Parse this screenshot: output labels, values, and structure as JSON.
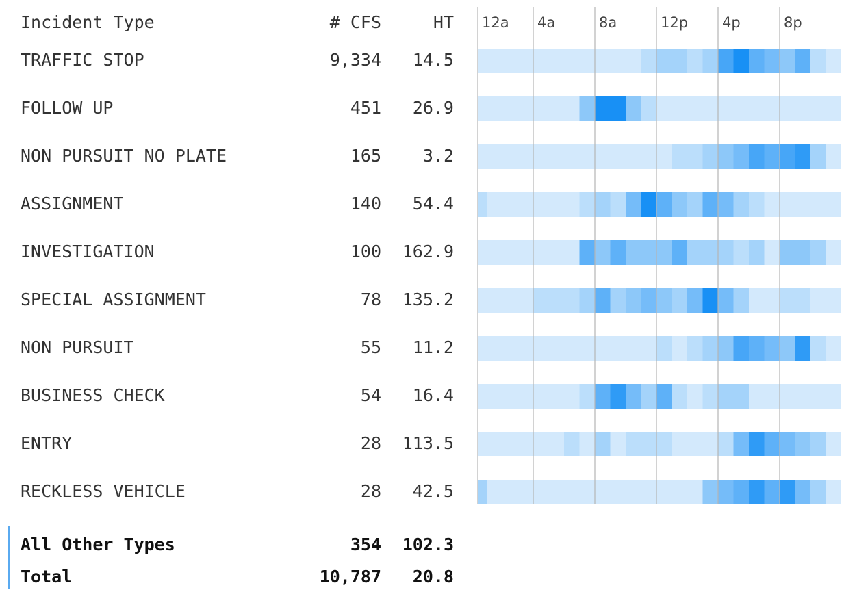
{
  "header": {
    "type": "Incident Type",
    "cfs": "# CFS",
    "ht": "HT"
  },
  "hour_labels": [
    "12a",
    "4a",
    "8a",
    "12p",
    "4p",
    "8p"
  ],
  "rows": [
    {
      "type": "TRAFFIC STOP",
      "cfs": "9,334",
      "ht": "14.5",
      "hours": [
        1,
        1,
        1,
        1,
        1,
        1,
        1,
        1,
        1,
        1,
        1,
        2,
        3,
        3,
        2,
        3,
        7,
        9,
        6,
        5,
        4,
        6,
        2,
        1
      ]
    },
    {
      "type": "FOLLOW UP",
      "cfs": "451",
      "ht": "26.9",
      "hours": [
        1,
        1,
        1,
        1,
        1,
        1,
        1,
        4,
        9,
        9,
        4,
        2,
        1,
        1,
        1,
        1,
        1,
        1,
        1,
        1,
        1,
        1,
        1,
        1
      ]
    },
    {
      "type": "NON PURSUIT NO PLATE",
      "cfs": "165",
      "ht": "3.2",
      "hours": [
        1,
        1,
        1,
        1,
        1,
        1,
        1,
        1,
        1,
        1,
        1,
        1,
        1,
        2,
        2,
        3,
        4,
        5,
        7,
        6,
        7,
        8,
        3,
        1
      ]
    },
    {
      "type": "ASSIGNMENT",
      "cfs": "140",
      "ht": "54.4",
      "hours": [
        2,
        1,
        1,
        1,
        1,
        1,
        1,
        2,
        3,
        2,
        5,
        9,
        6,
        4,
        3,
        6,
        5,
        3,
        2,
        1,
        1,
        1,
        1,
        1
      ]
    },
    {
      "type": "INVESTIGATION",
      "cfs": "100",
      "ht": "162.9",
      "hours": [
        1,
        1,
        1,
        1,
        1,
        1,
        1,
        6,
        4,
        6,
        4,
        4,
        4,
        6,
        3,
        3,
        3,
        2,
        3,
        1,
        4,
        4,
        3,
        1
      ]
    },
    {
      "type": "SPECIAL ASSIGNMENT",
      "cfs": "78",
      "ht": "135.2",
      "hours": [
        1,
        1,
        1,
        1,
        2,
        2,
        2,
        3,
        6,
        3,
        4,
        5,
        4,
        3,
        5,
        9,
        5,
        3,
        1,
        1,
        2,
        2,
        1,
        1
      ]
    },
    {
      "type": "NON PURSUIT",
      "cfs": "55",
      "ht": "11.2",
      "hours": [
        1,
        1,
        1,
        1,
        1,
        1,
        1,
        1,
        1,
        1,
        1,
        1,
        2,
        1,
        2,
        3,
        4,
        7,
        6,
        5,
        4,
        8,
        2,
        1
      ]
    },
    {
      "type": "BUSINESS CHECK",
      "cfs": "54",
      "ht": "16.4",
      "hours": [
        1,
        1,
        1,
        1,
        1,
        1,
        1,
        2,
        6,
        8,
        5,
        3,
        6,
        2,
        1,
        2,
        3,
        3,
        1,
        1,
        1,
        1,
        1,
        1
      ]
    },
    {
      "type": "ENTRY",
      "cfs": "28",
      "ht": "113.5",
      "hours": [
        1,
        1,
        1,
        1,
        1,
        1,
        2,
        1,
        3,
        1,
        2,
        2,
        2,
        1,
        1,
        1,
        2,
        5,
        8,
        6,
        5,
        4,
        3,
        1
      ]
    },
    {
      "type": "RECKLESS VEHICLE",
      "cfs": "28",
      "ht": "42.5",
      "hours": [
        3,
        1,
        1,
        1,
        1,
        1,
        1,
        1,
        1,
        1,
        1,
        1,
        1,
        1,
        1,
        4,
        5,
        6,
        8,
        6,
        8,
        5,
        3,
        1
      ]
    }
  ],
  "other": {
    "type": "All Other Types",
    "cfs": "354",
    "ht": "102.3"
  },
  "total": {
    "type": "Total",
    "cfs": "10,787",
    "ht": "20.8"
  }
}
